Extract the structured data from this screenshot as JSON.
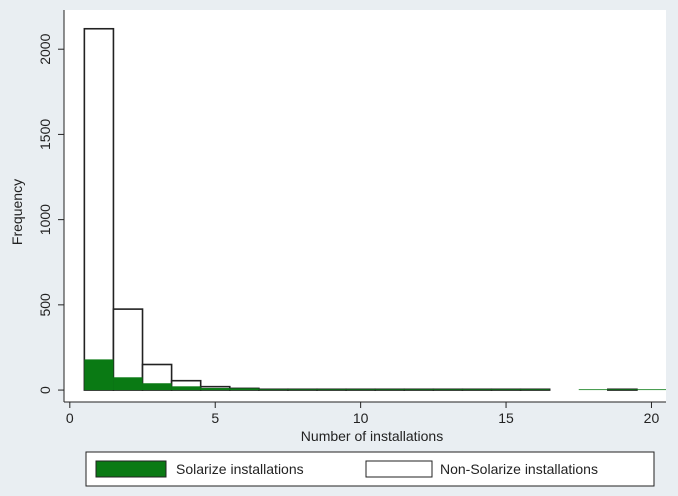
{
  "chart_data": {
    "type": "bar",
    "title": "",
    "xlabel": "Number of installations",
    "ylabel": "Frequency",
    "xlim": [
      -0.2,
      20.5
    ],
    "ylim": [
      -70,
      2230
    ],
    "xticks": [
      0,
      5,
      10,
      15,
      20
    ],
    "yticks": [
      0,
      500,
      1000,
      1500,
      2000
    ],
    "grid": false,
    "legend_position": "bottom",
    "bin_width": 1,
    "series": [
      {
        "name": "Solarize installations",
        "color": "#0a7a14",
        "style": "filled",
        "bins": [
          {
            "x": 1,
            "value": 180
          },
          {
            "x": 2,
            "value": 75
          },
          {
            "x": 3,
            "value": 40
          },
          {
            "x": 4,
            "value": 22
          },
          {
            "x": 5,
            "value": 12
          },
          {
            "x": 6,
            "value": 10
          },
          {
            "x": 7,
            "value": 3
          },
          {
            "x": 8,
            "value": 2
          },
          {
            "x": 9,
            "value": 2
          },
          {
            "x": 10,
            "value": 2
          },
          {
            "x": 11,
            "value": 1
          },
          {
            "x": 12,
            "value": 2
          },
          {
            "x": 13,
            "value": 1
          },
          {
            "x": 14,
            "value": 1
          },
          {
            "x": 15,
            "value": 1
          },
          {
            "x": 16,
            "value": 2
          },
          {
            "x": 18,
            "value": 1
          },
          {
            "x": 19,
            "value": 1
          },
          {
            "x": 20,
            "value": 1
          }
        ]
      },
      {
        "name": "Non-Solarize installations",
        "color": "#ffffff",
        "style": "outline",
        "bins": [
          {
            "x": 1,
            "value": 2120
          },
          {
            "x": 2,
            "value": 475
          },
          {
            "x": 3,
            "value": 150
          },
          {
            "x": 4,
            "value": 55
          },
          {
            "x": 5,
            "value": 20
          },
          {
            "x": 6,
            "value": 10
          },
          {
            "x": 7,
            "value": 4
          },
          {
            "x": 8,
            "value": 3
          },
          {
            "x": 9,
            "value": 2
          },
          {
            "x": 10,
            "value": 2
          },
          {
            "x": 11,
            "value": 1
          },
          {
            "x": 12,
            "value": 1
          },
          {
            "x": 13,
            "value": 1
          },
          {
            "x": 14,
            "value": 1
          },
          {
            "x": 15,
            "value": 1
          },
          {
            "x": 16,
            "value": 1
          },
          {
            "x": 19,
            "value": 1
          }
        ]
      }
    ]
  }
}
